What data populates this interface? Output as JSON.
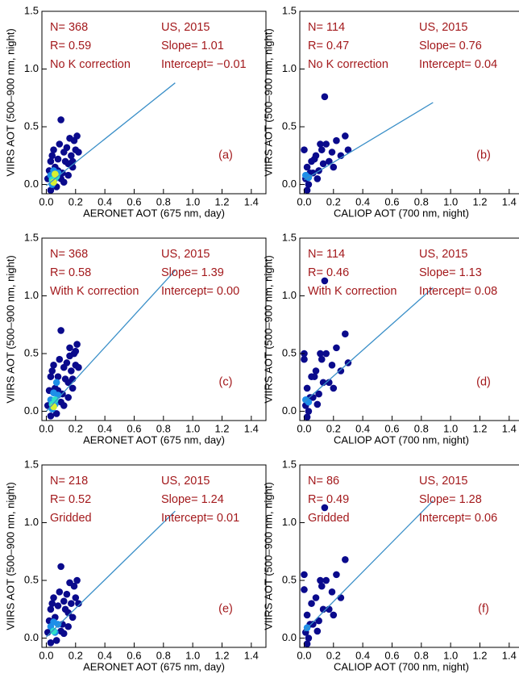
{
  "chart_data": [
    {
      "type": "scatter",
      "panel_label": "(a)",
      "xlabel": "AERONET AOT (675 nm, day)",
      "ylabel": "VIIRS AOT (500–900 nm, night)",
      "annotations": [
        "N= 368",
        "R= 0.59",
        "No K correction",
        "US, 2015",
        "Slope= 1.01",
        "Intercept= −0.01"
      ],
      "xlim": [
        -0.03,
        1.5
      ],
      "ylim": [
        -0.08,
        1.5
      ],
      "xticks": [
        {
          "value": 0,
          "label": "0.0"
        },
        {
          "value": 0.2,
          "label": "0.2"
        },
        {
          "value": 0.4,
          "label": "0.4"
        },
        {
          "value": 0.6,
          "label": "0.6"
        },
        {
          "value": 0.8,
          "label": "0.8"
        },
        {
          "value": 1,
          "label": "1.0"
        },
        {
          "value": 1.2,
          "label": "1.2"
        },
        {
          "value": 1.4,
          "label": "1.4"
        }
      ],
      "yticks": [
        {
          "value": 0,
          "label": "0.0"
        },
        {
          "value": 0.5,
          "label": "0.5"
        },
        {
          "value": 1,
          "label": "1.0"
        },
        {
          "value": 1.5,
          "label": "1.5"
        }
      ],
      "series": [
        {
          "color": "#0a0a8c",
          "x": [
            0.01,
            0.02,
            0.03,
            0.04,
            0.05,
            0.06,
            0.08,
            0.09,
            0.1,
            0.11,
            0.12,
            0.13,
            0.14,
            0.15,
            0.16,
            0.17,
            0.18,
            0.19,
            0.2,
            0.21,
            0.22,
            0.1,
            0.07,
            0.03,
            0.12,
            0.15,
            0.18,
            0.08
          ],
          "values": [
            0.05,
            0.12,
            0.2,
            0.25,
            0.3,
            0.15,
            0.22,
            0.35,
            0.56,
            0.1,
            0.28,
            0.2,
            0.32,
            0.18,
            0.4,
            0.25,
            0.15,
            0.38,
            0.3,
            0.42,
            0.28,
            0.05,
            -0.02,
            -0.05,
            0.02,
            0.08,
            0.2,
            0.12
          ]
        },
        {
          "color": "#1e8fe8",
          "x": [
            0.03,
            0.05,
            0.06,
            0.08,
            0.04
          ],
          "values": [
            0.08,
            0.12,
            0.05,
            0.1,
            0.0
          ]
        },
        {
          "color": "#2fe0c8",
          "x": [
            0.04,
            0.07
          ],
          "values": [
            0.04,
            0.07
          ]
        },
        {
          "color": "#d8f032",
          "x": [
            0.05,
            0.06
          ],
          "values": [
            0.02,
            0.09
          ]
        }
      ],
      "fit_line": {
        "color": "#3a8fc8",
        "x": [
          0,
          0.88
        ],
        "values": [
          -0.01,
          0.88
        ]
      }
    },
    {
      "type": "scatter",
      "panel_label": "(b)",
      "xlabel": "CALIOP AOT (700 nm, night)",
      "ylabel": "VIIRS AOT (500–900 nm, night)",
      "annotations": [
        "N= 114",
        "R= 0.47",
        "No K correction",
        "US, 2015",
        "Slope= 0.76",
        "Intercept= 0.04"
      ],
      "xlim": [
        -0.03,
        1.5
      ],
      "ylim": [
        -0.08,
        1.5
      ],
      "xticks": [
        {
          "value": 0,
          "label": "0.0"
        },
        {
          "value": 0.2,
          "label": "0.2"
        },
        {
          "value": 0.4,
          "label": "0.4"
        },
        {
          "value": 0.6,
          "label": "0.6"
        },
        {
          "value": 0.8,
          "label": "0.8"
        },
        {
          "value": 1,
          "label": "1.0"
        },
        {
          "value": 1.2,
          "label": "1.2"
        },
        {
          "value": 1.4,
          "label": "1.4"
        }
      ],
      "yticks": [
        {
          "value": 0,
          "label": "0.0"
        },
        {
          "value": 0.5,
          "label": "0.5"
        },
        {
          "value": 1,
          "label": "1.0"
        },
        {
          "value": 1.5,
          "label": "1.5"
        }
      ],
      "series": [
        {
          "color": "#0a0a8c",
          "x": [
            0.0,
            0.01,
            0.02,
            0.03,
            0.05,
            0.06,
            0.08,
            0.1,
            0.12,
            0.14,
            0.15,
            0.17,
            0.19,
            0.2,
            0.22,
            0.25,
            0.28,
            0.3,
            0.02,
            0.04,
            0.09,
            0.13,
            0.11,
            0.07
          ],
          "values": [
            0.3,
            0.05,
            0.15,
            0.0,
            0.2,
            0.1,
            0.25,
            0.12,
            0.3,
            0.76,
            0.35,
            0.2,
            0.28,
            0.15,
            0.38,
            0.25,
            0.42,
            0.3,
            -0.05,
            0.1,
            0.05,
            0.18,
            0.35,
            0.22
          ]
        },
        {
          "color": "#1e8fe8",
          "x": [
            0.01,
            0.03
          ],
          "values": [
            0.08,
            0.06
          ]
        }
      ],
      "fit_line": {
        "color": "#3a8fc8",
        "x": [
          0,
          0.88
        ],
        "values": [
          0.04,
          0.71
        ]
      }
    },
    {
      "type": "scatter",
      "panel_label": "(c)",
      "xlabel": "AERONET AOT (675 nm, day)",
      "ylabel": "VIIRS AOT (500–900 nm, night)",
      "annotations": [
        "N= 368",
        "R= 0.58",
        "With K correction",
        "US, 2015",
        "Slope= 1.39",
        "Intercept= 0.00"
      ],
      "xlim": [
        -0.03,
        1.5
      ],
      "ylim": [
        -0.08,
        1.5
      ],
      "xticks": [
        {
          "value": 0,
          "label": "0.0"
        },
        {
          "value": 0.2,
          "label": "0.2"
        },
        {
          "value": 0.4,
          "label": "0.4"
        },
        {
          "value": 0.6,
          "label": "0.6"
        },
        {
          "value": 0.8,
          "label": "0.8"
        },
        {
          "value": 1,
          "label": "1.0"
        },
        {
          "value": 1.2,
          "label": "1.2"
        },
        {
          "value": 1.4,
          "label": "1.4"
        }
      ],
      "yticks": [
        {
          "value": 0,
          "label": "0.0"
        },
        {
          "value": 0.5,
          "label": "0.5"
        },
        {
          "value": 1,
          "label": "1.0"
        },
        {
          "value": 1.5,
          "label": "1.5"
        }
      ],
      "series": [
        {
          "color": "#0a0a8c",
          "x": [
            0.01,
            0.02,
            0.03,
            0.04,
            0.05,
            0.06,
            0.08,
            0.09,
            0.1,
            0.11,
            0.12,
            0.13,
            0.14,
            0.15,
            0.16,
            0.17,
            0.18,
            0.19,
            0.2,
            0.21,
            0.22,
            0.1,
            0.07,
            0.03,
            0.12,
            0.15,
            0.18,
            0.08,
            0.2,
            0.16
          ],
          "values": [
            0.05,
            0.18,
            0.3,
            0.35,
            0.4,
            0.2,
            0.3,
            0.45,
            0.7,
            0.15,
            0.38,
            0.28,
            0.42,
            0.25,
            0.55,
            0.35,
            0.2,
            0.5,
            0.4,
            0.58,
            0.38,
            0.08,
            -0.02,
            -0.04,
            0.05,
            0.12,
            0.28,
            0.18,
            0.52,
            0.48
          ]
        },
        {
          "color": "#1e8fe8",
          "x": [
            0.03,
            0.05,
            0.06,
            0.08,
            0.04,
            0.07
          ],
          "values": [
            0.1,
            0.16,
            0.06,
            0.14,
            0.02,
            0.25
          ]
        },
        {
          "color": "#2fe0c8",
          "x": [
            0.04,
            0.06
          ],
          "values": [
            0.06,
            0.1
          ]
        },
        {
          "color": "#d8f032",
          "x": [
            0.05
          ],
          "values": [
            0.04
          ]
        }
      ],
      "fit_line": {
        "color": "#3a8fc8",
        "x": [
          0,
          0.88
        ],
        "values": [
          0.0,
          1.22
        ]
      }
    },
    {
      "type": "scatter",
      "panel_label": "(d)",
      "xlabel": "CALIOP AOT (700 nm, night)",
      "ylabel": "VIIRS AOT (500–900 nm, night)",
      "annotations": [
        "N= 114",
        "R= 0.46",
        "With K correction",
        "US, 2015",
        "Slope= 1.13",
        "Intercept= 0.08"
      ],
      "xlim": [
        -0.03,
        1.5
      ],
      "ylim": [
        -0.08,
        1.5
      ],
      "xticks": [
        {
          "value": 0,
          "label": "0.0"
        },
        {
          "value": 0.2,
          "label": "0.2"
        },
        {
          "value": 0.4,
          "label": "0.4"
        },
        {
          "value": 0.6,
          "label": "0.6"
        },
        {
          "value": 0.8,
          "label": "0.8"
        },
        {
          "value": 1,
          "label": "1.0"
        },
        {
          "value": 1.2,
          "label": "1.2"
        },
        {
          "value": 1.4,
          "label": "1.4"
        }
      ],
      "yticks": [
        {
          "value": 0,
          "label": "0.0"
        },
        {
          "value": 0.5,
          "label": "0.5"
        },
        {
          "value": 1,
          "label": "1.0"
        },
        {
          "value": 1.5,
          "label": "1.5"
        }
      ],
      "series": [
        {
          "color": "#0a0a8c",
          "x": [
            0.0,
            0.01,
            0.02,
            0.03,
            0.05,
            0.06,
            0.08,
            0.1,
            0.12,
            0.14,
            0.15,
            0.17,
            0.19,
            0.2,
            0.22,
            0.25,
            0.28,
            0.3,
            0.02,
            0.04,
            0.09,
            0.13,
            0.11,
            0.07,
            0.0
          ],
          "values": [
            0.5,
            0.05,
            0.2,
            0.0,
            0.3,
            0.12,
            0.35,
            0.15,
            0.45,
            1.13,
            0.5,
            0.25,
            0.4,
            0.2,
            0.55,
            0.35,
            0.67,
            0.42,
            -0.05,
            0.12,
            0.06,
            0.25,
            0.5,
            0.3,
            0.45
          ]
        },
        {
          "color": "#1e8fe8",
          "x": [
            0.01,
            0.03
          ],
          "values": [
            0.1,
            0.08
          ]
        }
      ],
      "fit_line": {
        "color": "#3a8fc8",
        "x": [
          0,
          0.88
        ],
        "values": [
          0.08,
          1.07
        ]
      }
    },
    {
      "type": "scatter",
      "panel_label": "(e)",
      "xlabel": "AERONET AOT (675 nm, day)",
      "ylabel": "VIIRS AOT (500–900 nm, night)",
      "annotations": [
        "N= 218",
        "R= 0.52",
        "Gridded",
        "US, 2015",
        "Slope= 1.24",
        "Intercept= 0.01"
      ],
      "xlim": [
        -0.03,
        1.5
      ],
      "ylim": [
        -0.08,
        1.5
      ],
      "xticks": [
        {
          "value": 0,
          "label": "0.0"
        },
        {
          "value": 0.2,
          "label": "0.2"
        },
        {
          "value": 0.4,
          "label": "0.4"
        },
        {
          "value": 0.6,
          "label": "0.6"
        },
        {
          "value": 0.8,
          "label": "0.8"
        },
        {
          "value": 1,
          "label": "1.0"
        },
        {
          "value": 1.2,
          "label": "1.2"
        },
        {
          "value": 1.4,
          "label": "1.4"
        }
      ],
      "yticks": [
        {
          "value": 0,
          "label": "0.0"
        },
        {
          "value": 0.5,
          "label": "0.5"
        },
        {
          "value": 1,
          "label": "1.0"
        },
        {
          "value": 1.5,
          "label": "1.5"
        }
      ],
      "series": [
        {
          "color": "#0a0a8c",
          "x": [
            0.01,
            0.02,
            0.03,
            0.04,
            0.05,
            0.06,
            0.08,
            0.09,
            0.1,
            0.11,
            0.12,
            0.13,
            0.14,
            0.15,
            0.16,
            0.17,
            0.18,
            0.19,
            0.2,
            0.21,
            0.22,
            0.1,
            0.07,
            0.03,
            0.12,
            0.15
          ],
          "values": [
            0.05,
            0.15,
            0.25,
            0.3,
            0.35,
            0.18,
            0.28,
            0.4,
            0.62,
            0.12,
            0.32,
            0.25,
            0.38,
            0.22,
            0.48,
            0.3,
            0.18,
            0.45,
            0.35,
            0.5,
            0.3,
            0.06,
            -0.02,
            -0.04,
            0.04,
            0.1
          ]
        },
        {
          "color": "#1e8fe8",
          "x": [
            0.03,
            0.05,
            0.06,
            0.08
          ],
          "values": [
            0.1,
            0.14,
            0.05,
            0.12
          ]
        },
        {
          "color": "#2fe0c8",
          "x": [
            0.05
          ],
          "values": [
            0.06
          ]
        }
      ],
      "fit_line": {
        "color": "#3a8fc8",
        "x": [
          0,
          0.88
        ],
        "values": [
          0.01,
          1.1
        ]
      }
    },
    {
      "type": "scatter",
      "panel_label": "(f)",
      "xlabel": "CALIOP AOT (700 nm, night)",
      "ylabel": "VIIRS AOT (500–900 nm, night)",
      "annotations": [
        "N= 86",
        "R= 0.49",
        "Gridded",
        "US, 2015",
        "Slope= 1.28",
        "Intercept= 0.06"
      ],
      "xlim": [
        -0.03,
        1.5
      ],
      "ylim": [
        -0.08,
        1.5
      ],
      "xticks": [
        {
          "value": 0,
          "label": "0.0"
        },
        {
          "value": 0.2,
          "label": "0.2"
        },
        {
          "value": 0.4,
          "label": "0.4"
        },
        {
          "value": 0.6,
          "label": "0.6"
        },
        {
          "value": 0.8,
          "label": "0.8"
        },
        {
          "value": 1,
          "label": "1.0"
        },
        {
          "value": 1.2,
          "label": "1.2"
        },
        {
          "value": 1.4,
          "label": "1.4"
        }
      ],
      "yticks": [
        {
          "value": 0,
          "label": "0.0"
        },
        {
          "value": 0.5,
          "label": "0.5"
        },
        {
          "value": 1,
          "label": "1.0"
        },
        {
          "value": 1.5,
          "label": "1.5"
        }
      ],
      "series": [
        {
          "color": "#0a0a8c",
          "x": [
            0.0,
            0.01,
            0.02,
            0.03,
            0.05,
            0.06,
            0.08,
            0.1,
            0.12,
            0.14,
            0.15,
            0.17,
            0.19,
            0.2,
            0.22,
            0.25,
            0.28,
            0.02,
            0.04,
            0.09,
            0.13,
            0.11,
            0.0
          ],
          "values": [
            0.55,
            0.05,
            0.2,
            0.0,
            0.3,
            0.12,
            0.35,
            0.15,
            0.45,
            1.13,
            0.5,
            0.25,
            0.4,
            0.2,
            0.55,
            0.35,
            0.68,
            -0.05,
            0.12,
            0.06,
            0.25,
            0.5,
            0.42
          ]
        },
        {
          "color": "#1e8fe8",
          "x": [
            0.02
          ],
          "values": [
            0.09
          ]
        }
      ],
      "fit_line": {
        "color": "#3a8fc8",
        "x": [
          0,
          0.88
        ],
        "values": [
          0.06,
          1.19
        ]
      }
    }
  ]
}
